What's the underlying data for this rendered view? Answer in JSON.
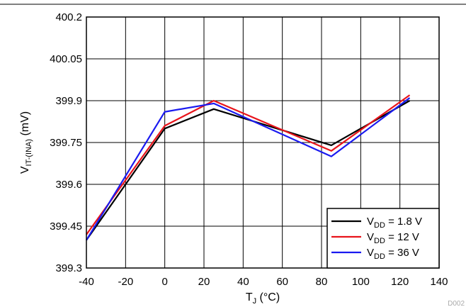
{
  "chart_data": {
    "type": "line",
    "title": "",
    "xlabel_main": "T",
    "xlabel_sub": "J",
    "xlabel_unit": " (°C)",
    "ylabel_main": "V",
    "ylabel_sub": "IT-(INA)",
    "ylabel_unit": " (mV)",
    "xlim": [
      -40,
      140
    ],
    "ylim": [
      399.3,
      400.2
    ],
    "xticks": [
      -40,
      -20,
      0,
      20,
      40,
      60,
      80,
      100,
      120,
      140
    ],
    "xtick_labels": [
      "-40",
      "-20",
      "0",
      "20",
      "40",
      "60",
      "80",
      "100",
      "120",
      "140"
    ],
    "yticks": [
      399.3,
      399.45,
      399.6,
      399.75,
      399.9,
      400.05,
      400.2
    ],
    "ytick_labels": [
      "399.3",
      "399.45",
      "399.6",
      "399.75",
      "399.9",
      "400.05",
      "400.2"
    ],
    "grid": true,
    "legend_position": "bottom-right",
    "watermark": "D002",
    "series": [
      {
        "name_main": "V",
        "name_sub": "DD",
        "name_rest": " = 1.8 V",
        "color": "#000000",
        "x": [
          -40,
          0,
          25,
          85,
          125
        ],
        "y": [
          399.4,
          399.8,
          399.87,
          399.74,
          399.9
        ]
      },
      {
        "name_main": "V",
        "name_sub": "DD",
        "name_rest": " = 12 V",
        "color": "#e8141b",
        "x": [
          -40,
          0,
          25,
          85,
          125
        ],
        "y": [
          399.42,
          399.81,
          399.9,
          399.72,
          399.92
        ]
      },
      {
        "name_main": "V",
        "name_sub": "DD",
        "name_rest": " = 36 V",
        "color": "#1a1af0",
        "x": [
          -40,
          0,
          25,
          85,
          125
        ],
        "y": [
          399.4,
          399.86,
          399.89,
          399.7,
          399.91
        ]
      }
    ]
  }
}
